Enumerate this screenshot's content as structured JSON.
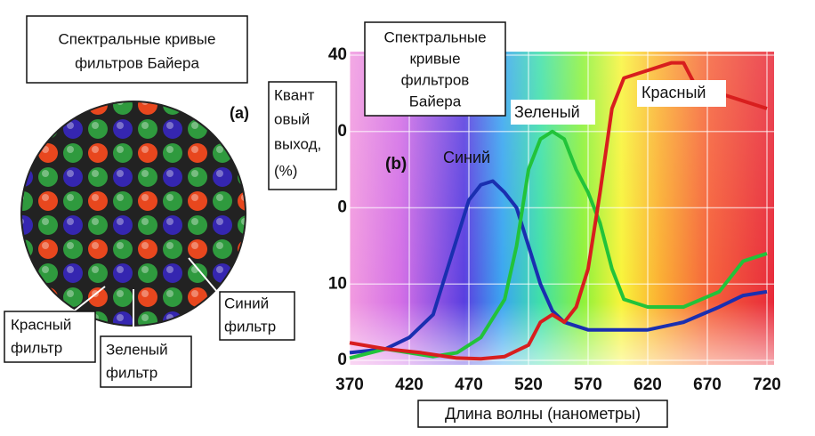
{
  "panel_a": {
    "title": [
      "Спектральные кривые",
      "фильтров Байера"
    ],
    "letter": "(a)",
    "red_label": [
      "Красный",
      "фильтр"
    ],
    "green_label": [
      "Зеленый",
      "фильтр"
    ],
    "blue_label": [
      "Синий",
      "фильтр"
    ]
  },
  "chart_data": {
    "type": "line",
    "letter": "(b)",
    "title": [
      "Спектральные",
      "кривые",
      "фильтров",
      "Байера"
    ],
    "y_label": [
      "Квант",
      "овый",
      "выход,",
      "(%)"
    ],
    "x_label": "Длина волны (нанометры)",
    "xlim": [
      370,
      725
    ],
    "xticks": [
      370,
      420,
      470,
      520,
      570,
      620,
      670,
      720
    ],
    "ylim": [
      0,
      40
    ],
    "yticks": [
      40,
      {
        "value": 30,
        "label": "0"
      },
      {
        "value": 20,
        "label": "0"
      },
      10,
      0
    ],
    "grid": true,
    "series": [
      {
        "name": "Синий",
        "color": "#1a2fb0",
        "x": [
          370,
          400,
          420,
          440,
          460,
          470,
          480,
          490,
          500,
          510,
          520,
          530,
          540,
          550,
          570,
          600,
          620,
          650,
          680,
          700,
          720
        ],
        "values": [
          1,
          1.5,
          3,
          6,
          16,
          21,
          23,
          23.5,
          22,
          20,
          15,
          10,
          6.5,
          5,
          4,
          4,
          4,
          5,
          7,
          8.5,
          9
        ]
      },
      {
        "name": "Зеленый",
        "color": "#22c33a",
        "x": [
          370,
          400,
          420,
          440,
          460,
          480,
          500,
          510,
          520,
          530,
          540,
          550,
          560,
          570,
          580,
          590,
          600,
          620,
          650,
          680,
          700,
          720
        ],
        "values": [
          0.3,
          1.5,
          1,
          0.5,
          1,
          3,
          8,
          15,
          25,
          29,
          30,
          29,
          25,
          22,
          18,
          12,
          8,
          7,
          7,
          9,
          13,
          14
        ]
      },
      {
        "name": "Красный",
        "color": "#d81e1e",
        "x": [
          370,
          400,
          430,
          460,
          480,
          500,
          520,
          530,
          540,
          550,
          560,
          570,
          580,
          590,
          600,
          620,
          640,
          650,
          660,
          680,
          700,
          720
        ],
        "values": [
          2.3,
          1.5,
          1,
          0.3,
          0.2,
          0.5,
          2,
          5,
          6,
          5,
          7,
          12,
          22,
          33,
          37,
          38,
          39,
          39,
          36,
          35,
          34,
          33
        ]
      }
    ]
  }
}
